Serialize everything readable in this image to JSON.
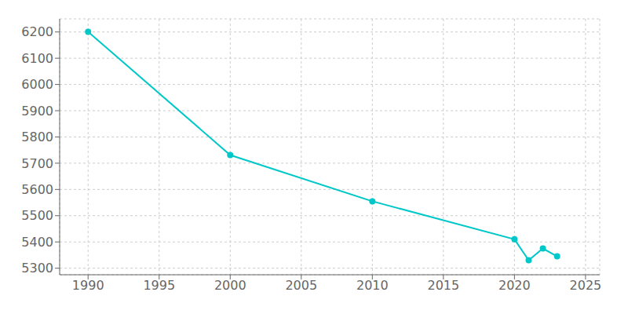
{
  "chart_data": {
    "type": "line",
    "x": [
      1990,
      2000,
      2010,
      2020,
      2021,
      2022,
      2023
    ],
    "values": [
      6201,
      5731,
      5555,
      5410,
      5330,
      5375,
      5345
    ],
    "color": "#00C8C8",
    "marker": "circle",
    "xlim": [
      1988,
      2026
    ],
    "xticks": [
      1990,
      1995,
      2000,
      2005,
      2010,
      2015,
      2020,
      2025
    ],
    "ylim": [
      5275,
      6250
    ],
    "yticks": [
      5300,
      5400,
      5500,
      5600,
      5700,
      5800,
      5900,
      6000,
      6100,
      6200
    ],
    "grid": true
  }
}
